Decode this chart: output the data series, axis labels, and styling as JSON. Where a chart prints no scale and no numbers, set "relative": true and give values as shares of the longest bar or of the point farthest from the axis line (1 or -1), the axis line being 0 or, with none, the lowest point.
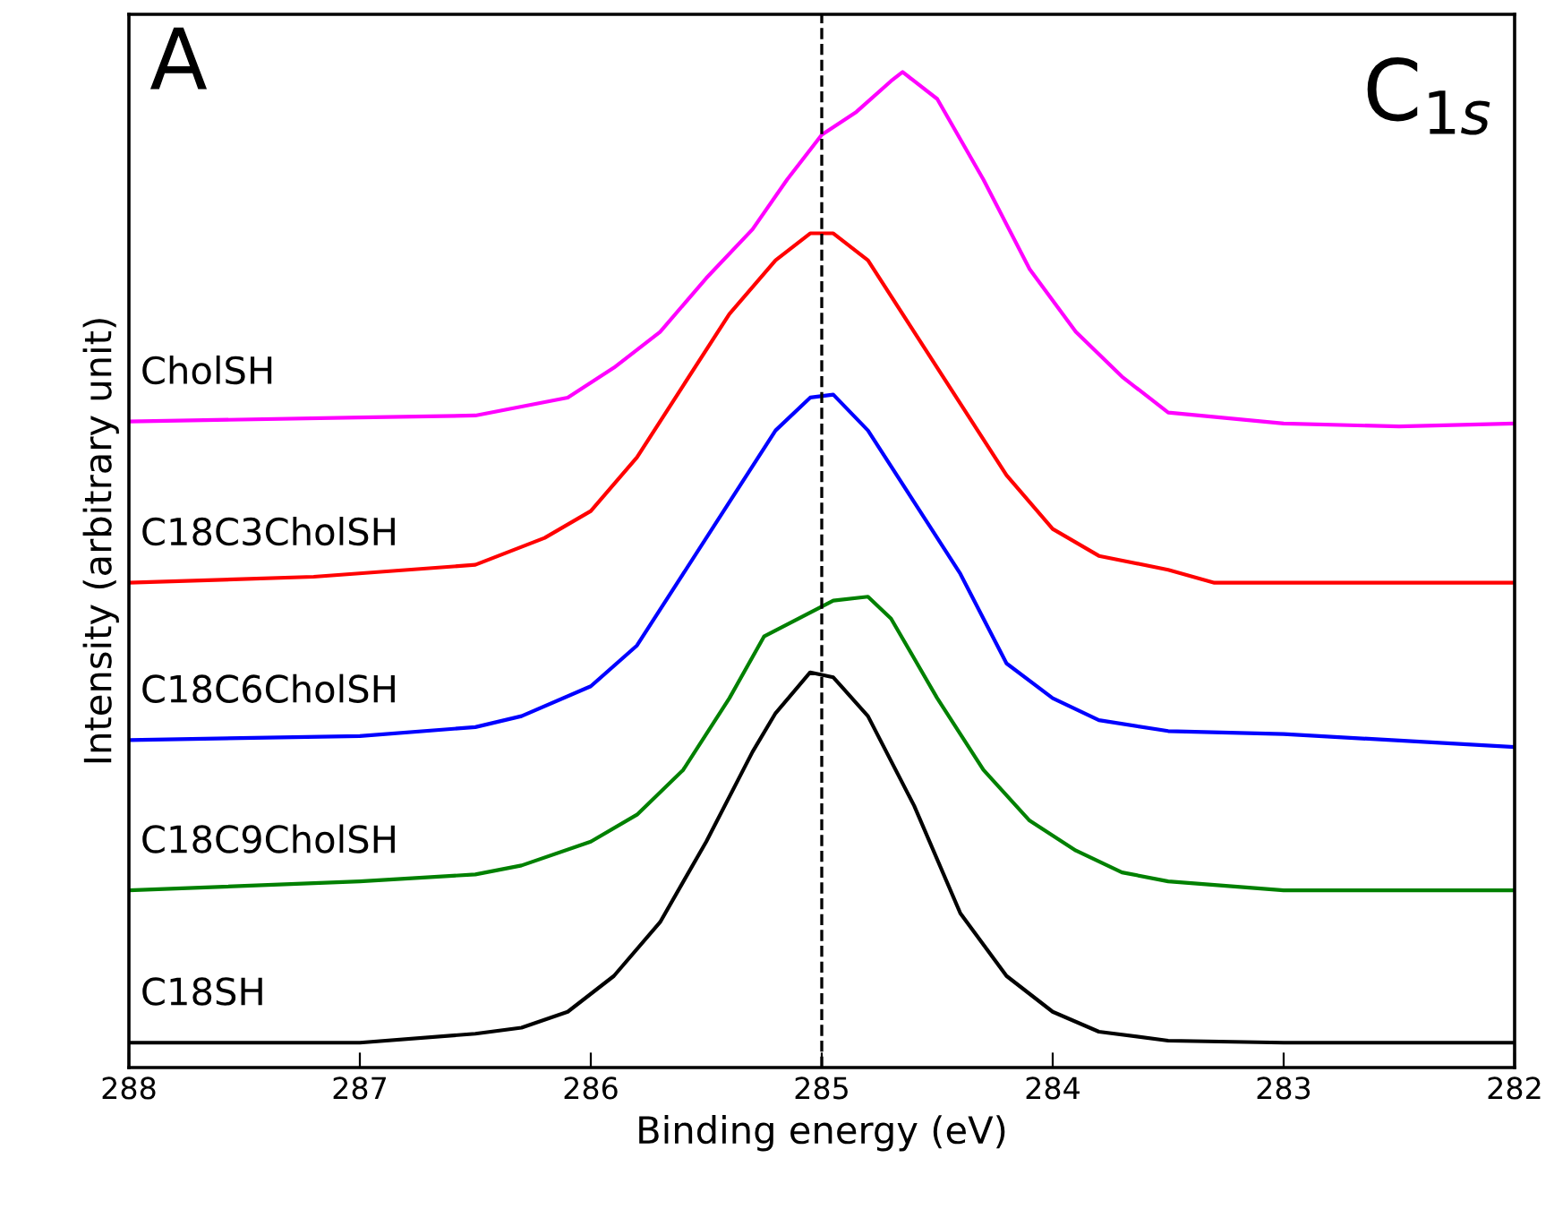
{
  "chart_data": {
    "type": "line",
    "relative": true,
    "xlabel": "Binding energy (eV)",
    "ylabel": "Intensity (arbitrary unit)",
    "xlim": [
      288,
      282
    ],
    "xticks": [
      288,
      287,
      286,
      285,
      284,
      283,
      282
    ],
    "legend": false,
    "grid": false,
    "tick_labels": "x",
    "annotations": [
      "A",
      "C$_{1s}$"
    ],
    "ref_lines": [
      {
        "axis": "x",
        "value": 285,
        "color": "#000000",
        "line_style": "dashed"
      }
    ],
    "series": [
      {
        "name": "CholSH",
        "color": "#ff00ff",
        "x": [
          288,
          287,
          286.5,
          286.1,
          285.9,
          285.7,
          285.5,
          285.3,
          285.15,
          285.0,
          284.85,
          284.7,
          284.65,
          284.5,
          284.3,
          284.1,
          283.9,
          283.7,
          283.5,
          283,
          282.5,
          282
        ],
        "values": [
          0.649,
          0.653,
          0.655,
          0.673,
          0.703,
          0.739,
          0.793,
          0.842,
          0.892,
          0.937,
          0.96,
          0.991,
          1,
          0.973,
          0.892,
          0.802,
          0.739,
          0.694,
          0.658,
          0.647,
          0.644,
          0.647
        ]
      },
      {
        "name": "C18C3CholSH",
        "color": "#ff0000",
        "x": [
          288,
          287.2,
          286.5,
          286.2,
          286.0,
          285.8,
          285.6,
          285.4,
          285.2,
          285.05,
          284.95,
          284.8,
          284.6,
          284.4,
          284.2,
          284.0,
          283.8,
          283.5,
          283.3,
          282
        ],
        "values": [
          0.487,
          0.493,
          0.505,
          0.532,
          0.559,
          0.613,
          0.685,
          0.757,
          0.811,
          0.838,
          0.838,
          0.811,
          0.739,
          0.667,
          0.595,
          0.541,
          0.514,
          0.5,
          0.487,
          0.487
        ]
      },
      {
        "name": "C18C6CholSH",
        "color": "#0000ff",
        "x": [
          288,
          287,
          286.5,
          286.3,
          286.0,
          285.8,
          285.6,
          285.4,
          285.2,
          285.05,
          284.95,
          284.8,
          284.6,
          284.4,
          284.2,
          284.0,
          283.8,
          283.5,
          283,
          282
        ],
        "values": [
          0.329,
          0.333,
          0.342,
          0.353,
          0.383,
          0.424,
          0.496,
          0.568,
          0.64,
          0.673,
          0.676,
          0.64,
          0.568,
          0.496,
          0.406,
          0.371,
          0.349,
          0.338,
          0.335,
          0.322
        ]
      },
      {
        "name": "C18C9CholSH",
        "color": "#008000",
        "x": [
          288,
          287,
          286.5,
          286.3,
          286.0,
          285.8,
          285.6,
          285.4,
          285.25,
          285.1,
          284.95,
          284.8,
          284.7,
          284.5,
          284.3,
          284.1,
          283.9,
          283.7,
          283.5,
          283,
          282
        ],
        "values": [
          0.178,
          0.187,
          0.194,
          0.203,
          0.227,
          0.254,
          0.299,
          0.371,
          0.433,
          0.451,
          0.469,
          0.473,
          0.451,
          0.371,
          0.299,
          0.248,
          0.218,
          0.196,
          0.187,
          0.178,
          0.178
        ]
      },
      {
        "name": "C18SH",
        "color": "#000000",
        "x": [
          288,
          287,
          286.5,
          286.3,
          286.1,
          285.9,
          285.7,
          285.5,
          285.3,
          285.2,
          285.05,
          284.95,
          284.8,
          284.6,
          284.4,
          284.2,
          284.0,
          283.8,
          283.5,
          283,
          282
        ],
        "values": [
          0.025,
          0.025,
          0.034,
          0.04,
          0.056,
          0.092,
          0.146,
          0.227,
          0.317,
          0.356,
          0.397,
          0.392,
          0.353,
          0.263,
          0.155,
          0.092,
          0.056,
          0.036,
          0.027,
          0.025,
          0.025
        ]
      }
    ]
  }
}
